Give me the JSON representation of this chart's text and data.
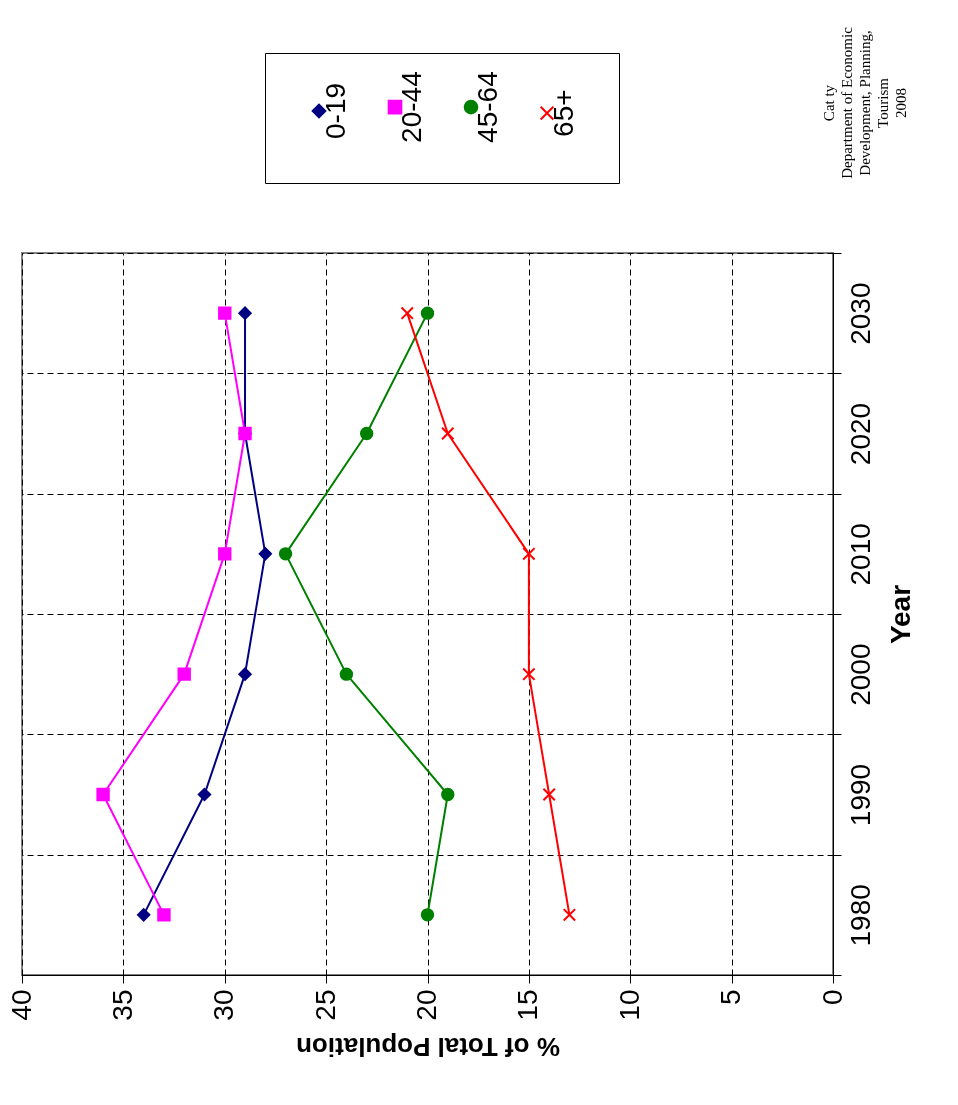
{
  "chart_data": {
    "type": "line",
    "orientation": "horizontal",
    "xlabel": "% of Total Population",
    "ylabel": "Year",
    "categories": [
      "2030",
      "2020",
      "2010",
      "2000",
      "1990",
      "1980"
    ],
    "series": [
      {
        "name": "0-19",
        "color": "#000080",
        "marker": "diamond",
        "values": [
          29,
          29,
          28,
          29,
          31,
          34
        ]
      },
      {
        "name": "20-44",
        "color": "#ff00ff",
        "marker": "square",
        "values": [
          30,
          29,
          30,
          32,
          36,
          33
        ]
      },
      {
        "name": "45-64",
        "color": "#008000",
        "marker": "circle",
        "values": [
          20,
          23,
          27,
          24,
          19,
          20
        ]
      },
      {
        "name": "65+",
        "color": "#ff0000",
        "marker": "cross",
        "values": [
          21,
          19,
          15,
          15,
          14,
          13
        ]
      }
    ],
    "xlim": [
      40,
      0
    ],
    "xticks": [
      40,
      35,
      30,
      25,
      20,
      15,
      10,
      5,
      0
    ],
    "grid": true,
    "legend": "top",
    "annotations": [
      "Cat ty",
      "Department of Economic",
      "Development, Planning,",
      "Tourism",
      "2008"
    ]
  }
}
